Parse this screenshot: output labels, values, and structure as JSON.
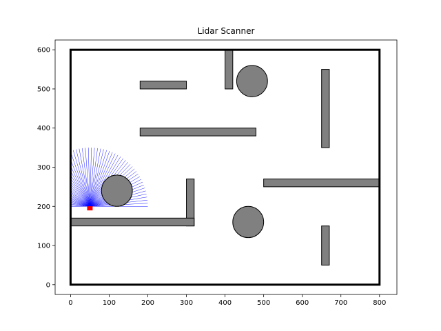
{
  "chart_data": {
    "type": "scatter",
    "title": "Lidar Scanner",
    "xlabel": "",
    "ylabel": "",
    "xlim": [
      -40,
      845
    ],
    "ylim": [
      -25,
      625
    ],
    "xticks": [
      0,
      100,
      200,
      300,
      400,
      500,
      600,
      700,
      800
    ],
    "yticks": [
      0,
      100,
      200,
      300,
      400,
      500,
      600
    ],
    "grid": false,
    "colors": {
      "obstacle_fill": "#808080",
      "obstacle_edge": "#000000",
      "border": "#000000",
      "rays": "#0000ff",
      "robot": "#ff0000"
    },
    "boundary": {
      "x0": 0,
      "y0": 0,
      "x1": 800,
      "y1": 600
    },
    "rectangles": [
      {
        "x": 180,
        "y": 500,
        "w": 120,
        "h": 20
      },
      {
        "x": 400,
        "y": 500,
        "w": 20,
        "h": 100
      },
      {
        "x": 180,
        "y": 380,
        "w": 300,
        "h": 20
      },
      {
        "x": 650,
        "y": 350,
        "w": 20,
        "h": 200
      },
      {
        "x": 500,
        "y": 250,
        "w": 300,
        "h": 20
      },
      {
        "x": 300,
        "y": 150,
        "w": 20,
        "h": 120
      },
      {
        "x": 0,
        "y": 150,
        "w": 320,
        "h": 20
      },
      {
        "x": 650,
        "y": 50,
        "w": 20,
        "h": 100
      }
    ],
    "circles": [
      {
        "cx": 470,
        "cy": 520,
        "r": 40
      },
      {
        "cx": 120,
        "cy": 240,
        "r": 40
      },
      {
        "cx": 460,
        "cy": 160,
        "r": 40
      }
    ],
    "robot": {
      "x": 50,
      "y": 195
    },
    "lidar": {
      "origin": {
        "x": 50,
        "y": 200
      },
      "angle_start_deg": 0,
      "angle_end_deg": 180,
      "num_rays": 60,
      "max_range": 150
    }
  }
}
